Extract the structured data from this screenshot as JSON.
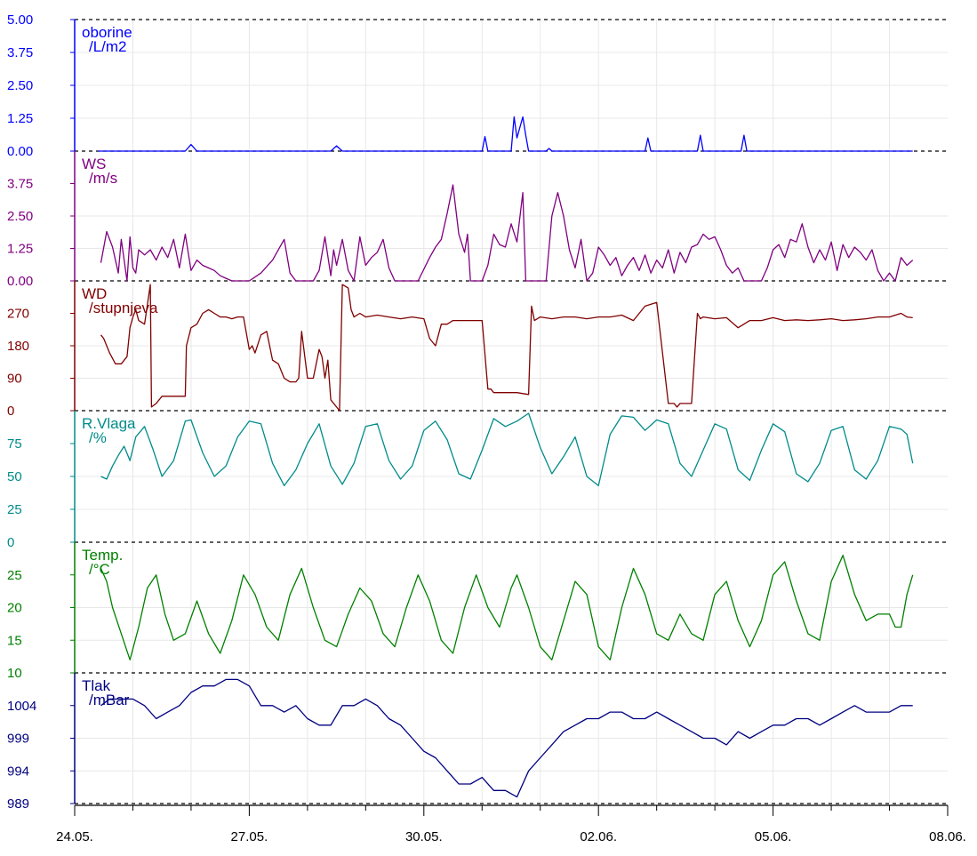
{
  "x_axis": {
    "tick_labels": [
      "24.05.",
      "27.05.",
      "30.05.",
      "02.06.",
      "05.06.",
      "08.06."
    ],
    "range": [
      "24.05.",
      "08.06."
    ],
    "minor_ticks_per_day": true
  },
  "chart_data": [
    {
      "type": "line",
      "label_line1": "oborine",
      "label_line2": "/L/m2",
      "color": "#0000ff",
      "ylim": [
        0,
        5
      ],
      "y_tick_labels": [
        "5.00",
        "3.75",
        "2.50",
        "1.25",
        "0.00"
      ],
      "x_days": [
        0.4,
        1.9,
        2.0,
        2.1,
        4.4,
        4.5,
        4.6,
        7.0,
        7.05,
        7.1,
        7.5,
        7.55,
        7.6,
        7.7,
        7.75,
        7.8,
        8.1,
        8.15,
        8.2,
        9.8,
        9.85,
        9.9,
        10.7,
        10.75,
        10.8,
        11.45,
        11.5,
        11.55,
        14.4
      ],
      "values": [
        0,
        0,
        0.25,
        0,
        0,
        0.2,
        0,
        0,
        0.55,
        0,
        0,
        1.3,
        0.5,
        1.3,
        0.6,
        0,
        0,
        0.1,
        0,
        0,
        0.5,
        0,
        0,
        0.6,
        0,
        0,
        0.6,
        0,
        0
      ]
    },
    {
      "type": "line",
      "label_line1": "WS",
      "label_line2": "/m/s",
      "color": "#800080",
      "ylim": [
        0,
        5
      ],
      "y_tick_labels": [
        "3.75",
        "2.50",
        "1.25",
        "0.00"
      ],
      "x_days": [
        0.45,
        0.55,
        0.65,
        0.75,
        0.8,
        0.9,
        0.95,
        1.0,
        1.05,
        1.1,
        1.2,
        1.3,
        1.4,
        1.5,
        1.6,
        1.7,
        1.8,
        1.9,
        2.0,
        2.1,
        2.2,
        2.3,
        2.4,
        2.5,
        2.6,
        2.7,
        2.8,
        2.9,
        3.0,
        3.2,
        3.4,
        3.6,
        3.7,
        3.8,
        3.9,
        4.0,
        4.1,
        4.2,
        4.3,
        4.4,
        4.45,
        4.5,
        4.6,
        4.7,
        4.8,
        4.9,
        5.0,
        5.1,
        5.2,
        5.3,
        5.4,
        5.5,
        5.6,
        5.7,
        5.8,
        5.9,
        6.1,
        6.2,
        6.3,
        6.4,
        6.5,
        6.6,
        6.7,
        6.75,
        6.8,
        6.9,
        7.0,
        7.1,
        7.2,
        7.3,
        7.4,
        7.5,
        7.6,
        7.7,
        7.75,
        7.8,
        7.9,
        8.0,
        8.1,
        8.2,
        8.3,
        8.4,
        8.5,
        8.6,
        8.7,
        8.8,
        8.9,
        9.0,
        9.1,
        9.2,
        9.3,
        9.4,
        9.5,
        9.6,
        9.7,
        9.8,
        9.9,
        10.0,
        10.1,
        10.2,
        10.3,
        10.4,
        10.5,
        10.6,
        10.7,
        10.8,
        10.9,
        11.0,
        11.1,
        11.2,
        11.3,
        11.4,
        11.5,
        11.6,
        11.7,
        11.8,
        11.9,
        12.0,
        12.1,
        12.2,
        12.3,
        12.4,
        12.5,
        12.6,
        12.7,
        12.8,
        12.9,
        13.0,
        13.1,
        13.2,
        13.3,
        13.4,
        13.5,
        13.6,
        13.7,
        13.8,
        13.9,
        14.0,
        14.1,
        14.2,
        14.3,
        14.4
      ],
      "values": [
        0.7,
        1.9,
        1.3,
        0.3,
        1.6,
        0,
        1.7,
        0.5,
        0.3,
        1.2,
        1.0,
        1.2,
        0.8,
        1.3,
        0.9,
        1.6,
        0.5,
        1.8,
        0.4,
        0.8,
        0.6,
        0.5,
        0.4,
        0.2,
        0.1,
        0,
        0,
        0,
        0,
        0.3,
        0.8,
        1.6,
        0.3,
        0,
        0,
        0,
        0,
        0.4,
        1.7,
        0.2,
        1.2,
        0.6,
        1.6,
        0.4,
        0,
        1.7,
        0.6,
        0.9,
        1.1,
        1.6,
        0.5,
        0,
        0,
        0,
        0,
        0,
        0.9,
        1.3,
        1.6,
        2.6,
        3.7,
        1.8,
        1.1,
        1.8,
        0,
        0,
        0,
        0.6,
        1.8,
        1.4,
        1.3,
        2.2,
        1.5,
        3.4,
        0,
        0,
        0,
        0,
        0,
        2.5,
        3.4,
        2.5,
        1.2,
        0.5,
        1.6,
        0,
        0.3,
        1.3,
        1.0,
        0.6,
        0.9,
        0.2,
        0.6,
        0.9,
        0.4,
        1.0,
        0.3,
        0.8,
        0.5,
        1.2,
        0.3,
        1.1,
        0.7,
        1.3,
        1.4,
        1.8,
        1.6,
        1.7,
        1.2,
        0.6,
        0.3,
        0.5,
        0,
        0,
        0,
        0,
        0.5,
        1.2,
        1.4,
        0.9,
        1.6,
        1.5,
        2.2,
        1.3,
        0.7,
        1.2,
        0.8,
        1.5,
        0.4,
        1.4,
        0.9,
        1.3,
        1.1,
        0.8,
        1.2,
        0.4,
        0,
        0.3,
        0,
        0.9,
        0.6,
        0.8
      ]
    },
    {
      "type": "line",
      "label_line1": "WD",
      "label_line2": "/stupnjeva",
      "color": "#800000",
      "ylim": [
        0,
        360
      ],
      "y_tick_labels": [
        "270",
        "180",
        "90",
        "0"
      ],
      "x_days": [
        0.45,
        0.5,
        0.6,
        0.7,
        0.8,
        0.9,
        0.95,
        1.0,
        1.05,
        1.1,
        1.2,
        1.3,
        1.32,
        1.4,
        1.5,
        1.6,
        1.7,
        1.8,
        1.9,
        1.92,
        2.0,
        2.1,
        2.2,
        2.3,
        2.4,
        2.5,
        2.6,
        2.7,
        2.8,
        2.9,
        3.0,
        3.05,
        3.1,
        3.2,
        3.3,
        3.4,
        3.5,
        3.6,
        3.7,
        3.8,
        3.85,
        3.9,
        4.0,
        4.1,
        4.2,
        4.25,
        4.3,
        4.35,
        4.4,
        4.5,
        4.55,
        4.6,
        4.7,
        4.75,
        4.8,
        4.9,
        5.0,
        5.2,
        5.4,
        5.6,
        5.8,
        6.0,
        6.1,
        6.2,
        6.3,
        6.4,
        6.5,
        6.6,
        6.8,
        7.0,
        7.1,
        7.15,
        7.2,
        7.4,
        7.6,
        7.8,
        7.85,
        7.9,
        8.0,
        8.2,
        8.4,
        8.6,
        8.8,
        9.0,
        9.2,
        9.4,
        9.6,
        9.8,
        10.0,
        10.2,
        10.3,
        10.35,
        10.4,
        10.5,
        10.6,
        10.7,
        10.75,
        10.8,
        11.0,
        11.2,
        11.4,
        11.6,
        11.8,
        12.0,
        12.2,
        12.4,
        12.6,
        12.8,
        13.0,
        13.2,
        13.4,
        13.6,
        13.8,
        14.0,
        14.2,
        14.3,
        14.4
      ],
      "values": [
        210,
        200,
        160,
        130,
        130,
        150,
        230,
        260,
        280,
        250,
        240,
        350,
        10,
        20,
        40,
        40,
        40,
        40,
        40,
        180,
        230,
        240,
        270,
        280,
        270,
        260,
        260,
        255,
        260,
        260,
        170,
        180,
        160,
        210,
        220,
        140,
        130,
        90,
        80,
        80,
        90,
        220,
        90,
        90,
        170,
        150,
        90,
        140,
        30,
        10,
        0,
        350,
        340,
        280,
        260,
        270,
        260,
        265,
        260,
        255,
        260,
        255,
        200,
        180,
        240,
        240,
        250,
        250,
        250,
        250,
        60,
        60,
        50,
        50,
        50,
        45,
        290,
        250,
        260,
        255,
        260,
        260,
        255,
        260,
        260,
        265,
        250,
        290,
        300,
        20,
        20,
        10,
        20,
        20,
        20,
        270,
        255,
        260,
        255,
        258,
        230,
        250,
        250,
        258,
        250,
        252,
        250,
        252,
        255,
        250,
        252,
        255,
        260,
        260,
        270,
        260,
        258
      ]
    },
    {
      "type": "line",
      "label_line1": "R.Vlaga",
      "label_line2": "/%",
      "color": "#008b8b",
      "ylim": [
        0,
        100
      ],
      "y_tick_labels": [
        "75",
        "50",
        "25",
        "0"
      ],
      "x_days": [
        0.45,
        0.55,
        0.65,
        0.75,
        0.85,
        0.95,
        1.05,
        1.2,
        1.35,
        1.5,
        1.7,
        1.9,
        2.0,
        2.2,
        2.4,
        2.6,
        2.8,
        3.0,
        3.2,
        3.4,
        3.6,
        3.8,
        4.0,
        4.2,
        4.4,
        4.6,
        4.8,
        5.0,
        5.2,
        5.4,
        5.6,
        5.8,
        6.0,
        6.2,
        6.4,
        6.6,
        6.8,
        7.0,
        7.2,
        7.4,
        7.6,
        7.8,
        8.0,
        8.2,
        8.4,
        8.6,
        8.8,
        9.0,
        9.2,
        9.4,
        9.6,
        9.8,
        10.0,
        10.2,
        10.4,
        10.6,
        10.8,
        11.0,
        11.2,
        11.4,
        11.6,
        11.8,
        12.0,
        12.2,
        12.4,
        12.6,
        12.8,
        13.0,
        13.2,
        13.4,
        13.6,
        13.8,
        14.0,
        14.2,
        14.3,
        14.4
      ],
      "values": [
        50,
        48,
        58,
        66,
        73,
        62,
        80,
        88,
        70,
        50,
        62,
        92,
        93,
        68,
        50,
        58,
        80,
        92,
        90,
        60,
        43,
        55,
        75,
        90,
        58,
        44,
        60,
        88,
        90,
        62,
        48,
        58,
        85,
        92,
        78,
        52,
        48,
        70,
        94,
        88,
        92,
        98,
        72,
        52,
        65,
        80,
        50,
        43,
        82,
        96,
        95,
        85,
        93,
        90,
        60,
        50,
        70,
        90,
        86,
        55,
        47,
        70,
        90,
        84,
        52,
        46,
        60,
        85,
        88,
        55,
        48,
        62,
        88,
        86,
        82,
        60
      ]
    },
    {
      "type": "line",
      "label_line1": "Temp.",
      "label_line2": "/°C",
      "color": "#008000",
      "ylim": [
        10,
        30
      ],
      "y_tick_labels": [
        "25",
        "20",
        "15",
        "10"
      ],
      "x_days": [
        0.45,
        0.55,
        0.65,
        0.8,
        0.95,
        1.1,
        1.25,
        1.4,
        1.55,
        1.7,
        1.9,
        2.1,
        2.3,
        2.5,
        2.7,
        2.9,
        3.1,
        3.3,
        3.5,
        3.7,
        3.9,
        4.1,
        4.3,
        4.5,
        4.7,
        4.9,
        5.1,
        5.3,
        5.5,
        5.7,
        5.9,
        6.1,
        6.3,
        6.5,
        6.7,
        6.9,
        7.1,
        7.3,
        7.5,
        7.6,
        7.8,
        8.0,
        8.2,
        8.4,
        8.6,
        8.8,
        9.0,
        9.2,
        9.4,
        9.6,
        9.8,
        10.0,
        10.2,
        10.4,
        10.6,
        10.8,
        11.0,
        11.2,
        11.4,
        11.6,
        11.8,
        12.0,
        12.2,
        12.4,
        12.6,
        12.8,
        13.0,
        13.2,
        13.4,
        13.6,
        13.8,
        14.0,
        14.1,
        14.2,
        14.3,
        14.4
      ],
      "values": [
        26,
        24,
        20,
        16,
        12,
        17,
        23,
        25,
        19,
        15,
        16,
        21,
        16,
        13,
        18,
        25,
        22,
        17,
        15,
        22,
        26,
        20,
        15,
        14,
        19,
        23,
        21,
        16,
        14,
        20,
        25,
        21,
        15,
        13,
        20,
        25,
        20,
        17,
        23,
        25,
        20,
        14,
        12,
        18,
        24,
        22,
        14,
        12,
        20,
        26,
        22,
        16,
        15,
        19,
        16,
        15,
        22,
        24,
        18,
        14,
        18,
        25,
        27,
        21,
        16,
        15,
        24,
        28,
        22,
        18,
        19,
        19,
        17,
        17,
        22,
        25
      ]
    },
    {
      "type": "line",
      "label_line1": "Tlak",
      "label_line2": "/mBar",
      "color": "#000080",
      "ylim": [
        989,
        1009
      ],
      "y_tick_labels": [
        "1004",
        "999",
        "994",
        "989"
      ],
      "x_days": [
        0.45,
        0.6,
        0.8,
        1.0,
        1.2,
        1.4,
        1.6,
        1.8,
        2.0,
        2.2,
        2.4,
        2.6,
        2.8,
        3.0,
        3.2,
        3.4,
        3.6,
        3.8,
        4.0,
        4.2,
        4.4,
        4.6,
        4.8,
        5.0,
        5.2,
        5.4,
        5.6,
        5.8,
        6.0,
        6.2,
        6.4,
        6.6,
        6.8,
        7.0,
        7.2,
        7.4,
        7.6,
        7.8,
        8.0,
        8.2,
        8.4,
        8.6,
        8.8,
        9.0,
        9.2,
        9.4,
        9.6,
        9.8,
        10.0,
        10.2,
        10.4,
        10.6,
        10.8,
        11.0,
        11.2,
        11.4,
        11.6,
        11.8,
        12.0,
        12.2,
        12.4,
        12.6,
        12.8,
        13.0,
        13.2,
        13.4,
        13.6,
        13.8,
        14.0,
        14.2,
        14.4
      ],
      "values": [
        1004,
        1005,
        1005,
        1005,
        1004,
        1002,
        1003,
        1004,
        1006,
        1007,
        1007,
        1008,
        1008,
        1007,
        1004,
        1004,
        1003,
        1004,
        1002,
        1001,
        1001,
        1004,
        1004,
        1005,
        1004,
        1002,
        1001,
        999,
        997,
        996,
        994,
        992,
        992,
        993,
        991,
        991,
        990,
        994,
        996,
        998,
        1000,
        1001,
        1002,
        1002,
        1003,
        1003,
        1002,
        1002,
        1003,
        1002,
        1001,
        1000,
        999,
        999,
        998,
        1000,
        999,
        1000,
        1001,
        1001,
        1002,
        1002,
        1001,
        1002,
        1003,
        1004,
        1003,
        1003,
        1003,
        1004,
        1004
      ]
    }
  ]
}
